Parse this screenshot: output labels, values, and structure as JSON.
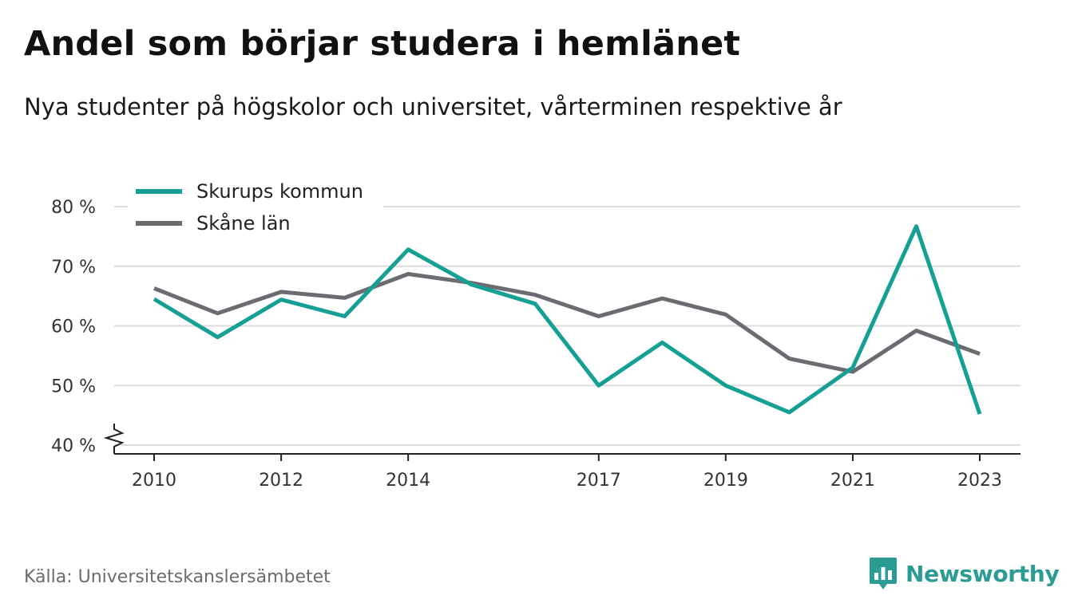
{
  "title": "Andel som börjar studera i hemlänet",
  "subtitle": "Nya studenter på högskolor och universitet, vårterminen respektive år",
  "source": "Källa: Universitetskanslersämbetet",
  "brand": {
    "name": "Newsworthy",
    "icon": "newsworthy-logo-icon",
    "color": "#2b9c93"
  },
  "chart_data": {
    "type": "line",
    "title": "Andel som börjar studera i hemlänet",
    "subtitle": "Nya studenter på högskolor och universitet, vårterminen respektive år",
    "x": [
      2010,
      2011,
      2012,
      2013,
      2014,
      2015,
      2016,
      2017,
      2018,
      2019,
      2020,
      2021,
      2022,
      2023
    ],
    "xticks": [
      2010,
      2012,
      2014,
      2017,
      2019,
      2021,
      2023
    ],
    "xtick_labels": [
      "2010",
      "2012",
      "2014",
      "2017",
      "2019",
      "2021",
      "2023"
    ],
    "yticks": [
      40,
      50,
      60,
      70,
      80
    ],
    "ytick_labels": [
      "40 %",
      "50 %",
      "60 %",
      "70 %",
      "80 %"
    ],
    "ylim": [
      40,
      80
    ],
    "y_axis_break": true,
    "grid": "horizontal",
    "legend_position": "top-left",
    "series": [
      {
        "name": "Skurups kommun",
        "color": "#16a094",
        "values": [
          64.5,
          58.1,
          64.4,
          61.6,
          72.8,
          66.9,
          63.7,
          50.0,
          57.2,
          50.0,
          45.5,
          53.0,
          76.7,
          45.2
        ]
      },
      {
        "name": "Skåne län",
        "color": "#6d6b72",
        "values": [
          66.3,
          62.1,
          65.7,
          64.7,
          68.7,
          67.2,
          65.2,
          61.6,
          64.6,
          61.9,
          54.5,
          52.3,
          59.2,
          55.3
        ]
      }
    ]
  }
}
